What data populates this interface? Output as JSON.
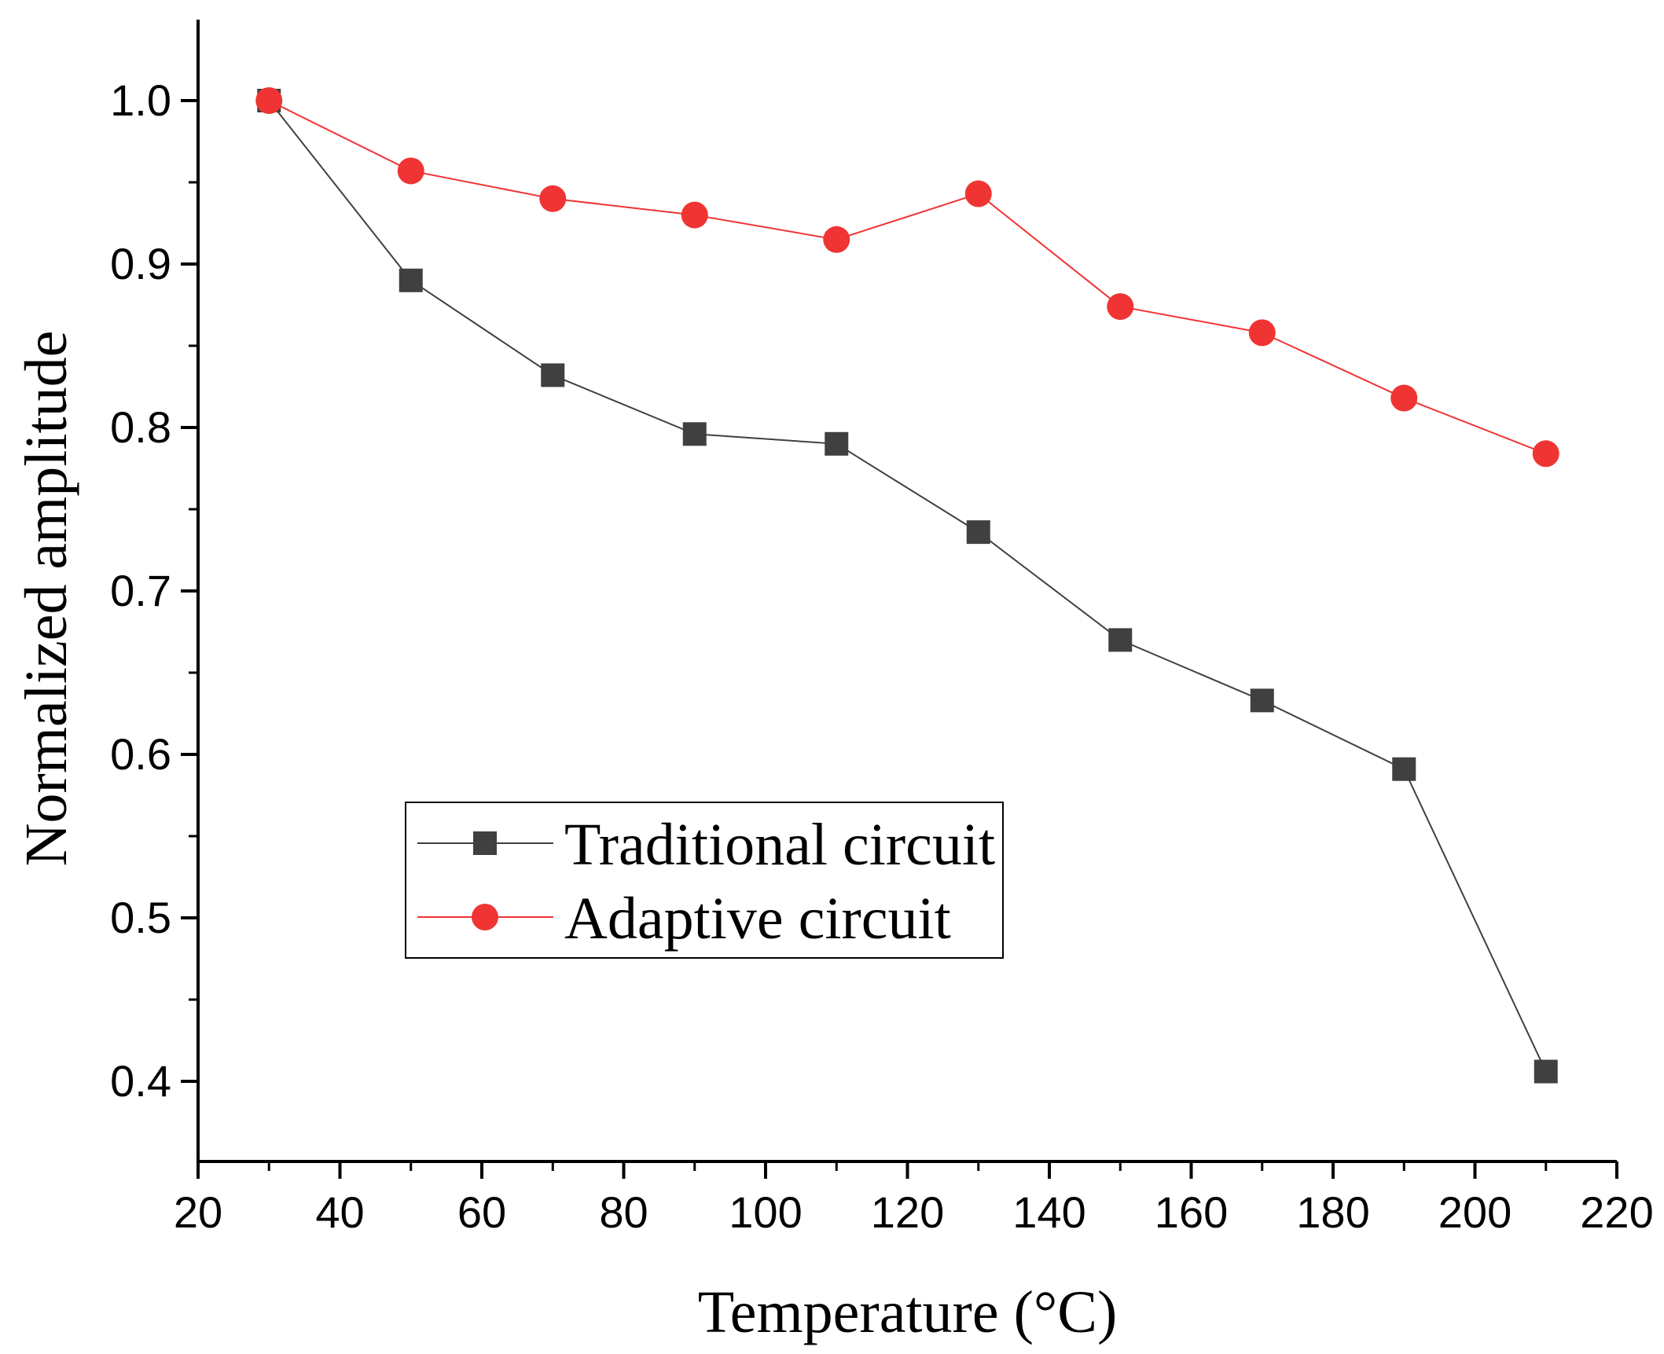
{
  "chart_data": {
    "type": "line",
    "title": "",
    "xlabel": "Temperature (°C)",
    "ylabel": "Normalized amplitude",
    "xlim": [
      20,
      220
    ],
    "ylim": [
      0.35,
      1.05
    ],
    "xticks": [
      "20",
      "40",
      "60",
      "80",
      "100",
      "120",
      "140",
      "160",
      "180",
      "200",
      "220"
    ],
    "yticks": [
      "0.4",
      "0.5",
      "0.6",
      "0.7",
      "0.8",
      "0.9",
      "1.0"
    ],
    "grid": false,
    "legend_position": "lower-left",
    "x": [
      30,
      50,
      70,
      90,
      110,
      130,
      150,
      170,
      190,
      210
    ],
    "series": [
      {
        "name": "Traditional circuit",
        "color": "#404040",
        "marker": "square",
        "values": [
          1.0,
          0.89,
          0.832,
          0.796,
          0.79,
          0.736,
          0.67,
          0.633,
          0.591,
          0.406
        ]
      },
      {
        "name": "Adaptive circuit",
        "color": "#f03434",
        "marker": "circle",
        "values": [
          1.0,
          0.957,
          0.94,
          0.93,
          0.915,
          0.943,
          0.874,
          0.858,
          0.818,
          0.784
        ]
      }
    ]
  }
}
